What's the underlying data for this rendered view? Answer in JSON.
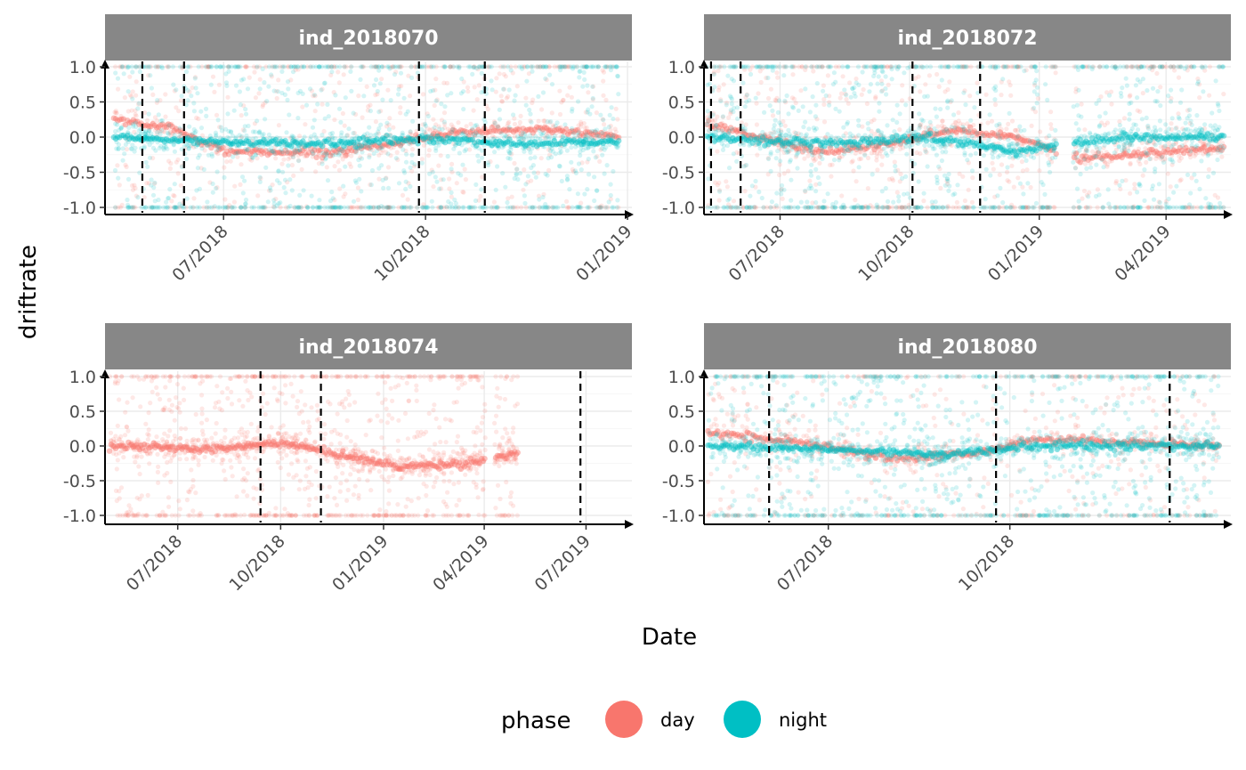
{
  "chart_data": {
    "type": "scatter",
    "xlabel": "Date",
    "ylabel": "driftrate",
    "ylim": [
      -1.0,
      1.0
    ],
    "yticks": [
      "1.0",
      "0.5",
      "0.0",
      "-0.5",
      "-1.0"
    ],
    "ytick_values": [
      1.0,
      0.5,
      0.0,
      -0.5,
      -1.0
    ],
    "grid": true,
    "legend": {
      "title": "phase",
      "placement": "bottom",
      "entries": [
        {
          "label": "day",
          "color": "#F8766D"
        },
        {
          "label": "night",
          "color": "#00BFC4"
        }
      ]
    },
    "panels": [
      {
        "id": "ind_2018070",
        "xlim": [
          "2018-05-08",
          "2019-01-03"
        ],
        "xticks": [
          {
            "date": "2018-07-01",
            "label": "07/2018"
          },
          {
            "date": "2018-10-01",
            "label": "10/2018"
          },
          {
            "date": "2019-01-01",
            "label": "01/2019"
          }
        ],
        "data_range": [
          "2018-05-12",
          "2018-12-28"
        ],
        "vlines": [
          "2018-05-25",
          "2018-06-13",
          "2018-09-28",
          "2018-10-28"
        ],
        "series": [
          {
            "name": "day",
            "trend": [
              [
                "2018-05-12",
                0.25
              ],
              [
                "2018-06-05",
                0.15
              ],
              [
                "2018-07-01",
                -0.2
              ],
              [
                "2018-08-15",
                -0.22
              ],
              [
                "2018-09-15",
                -0.1
              ],
              [
                "2018-10-15",
                0.08
              ],
              [
                "2018-12-01",
                0.1
              ],
              [
                "2018-12-28",
                0.0
              ]
            ],
            "density": 0.6
          },
          {
            "name": "night",
            "trend": [
              [
                "2018-05-12",
                0.0
              ],
              [
                "2018-06-15",
                -0.05
              ],
              [
                "2018-08-15",
                -0.1
              ],
              [
                "2018-10-01",
                -0.02
              ],
              [
                "2018-11-15",
                -0.1
              ],
              [
                "2018-12-28",
                -0.05
              ]
            ],
            "density": 1.0
          }
        ],
        "gaps": []
      },
      {
        "id": "ind_2018072",
        "xlim": [
          "2018-05-08",
          "2019-05-17"
        ],
        "xticks": [
          {
            "date": "2018-07-01",
            "label": "07/2018"
          },
          {
            "date": "2018-10-01",
            "label": "10/2018"
          },
          {
            "date": "2019-01-01",
            "label": "01/2019"
          },
          {
            "date": "2019-04-01",
            "label": "04/2019"
          }
        ],
        "data_range": [
          "2018-05-10",
          "2019-05-12"
        ],
        "vlines": [
          "2018-05-13",
          "2018-06-03",
          "2018-10-03",
          "2018-11-20"
        ],
        "series": [
          {
            "name": "day",
            "trend": [
              [
                "2018-05-10",
                0.2
              ],
              [
                "2018-06-15",
                0.0
              ],
              [
                "2018-08-01",
                -0.22
              ],
              [
                "2018-09-15",
                -0.1
              ],
              [
                "2018-11-01",
                0.1
              ],
              [
                "2018-12-15",
                0.0
              ],
              [
                "2019-02-01",
                -0.3
              ],
              [
                "2019-05-12",
                -0.15
              ]
            ],
            "density": 0.7
          },
          {
            "name": "night",
            "trend": [
              [
                "2018-05-10",
                0.0
              ],
              [
                "2018-08-01",
                -0.1
              ],
              [
                "2018-10-15",
                0.0
              ],
              [
                "2018-12-15",
                -0.2
              ],
              [
                "2019-03-01",
                0.0
              ],
              [
                "2019-05-12",
                0.0
              ]
            ],
            "density": 1.0
          }
        ],
        "gaps": [
          [
            "2019-01-13",
            "2019-01-25"
          ]
        ]
      },
      {
        "id": "ind_2018074",
        "xlim": [
          "2018-04-27",
          "2019-08-11"
        ],
        "xticks": [
          {
            "date": "2018-07-01",
            "label": "07/2018"
          },
          {
            "date": "2018-10-01",
            "label": "10/2018"
          },
          {
            "date": "2019-01-01",
            "label": "01/2019"
          },
          {
            "date": "2019-04-01",
            "label": "04/2019"
          },
          {
            "date": "2019-07-01",
            "label": "07/2019"
          }
        ],
        "data_range": [
          "2018-05-01",
          "2019-05-01"
        ],
        "vlines": [
          "2018-09-13",
          "2018-11-06",
          "2019-06-26"
        ],
        "series": [
          {
            "name": "day",
            "trend": [
              [
                "2018-05-01",
                0.0
              ],
              [
                "2018-08-01",
                -0.05
              ],
              [
                "2018-10-01",
                0.05
              ],
              [
                "2018-12-01",
                -0.15
              ],
              [
                "2019-01-15",
                -0.3
              ],
              [
                "2019-03-15",
                -0.25
              ],
              [
                "2019-05-01",
                -0.1
              ]
            ],
            "density": 1.0
          }
        ],
        "gaps": [
          [
            "2019-04-02",
            "2019-04-10"
          ]
        ]
      },
      {
        "id": "ind_2018080",
        "xlim": [
          "2018-04-29",
          "2019-01-21"
        ],
        "xticks": [
          {
            "date": "2018-07-01",
            "label": "07/2018"
          },
          {
            "date": "2018-10-01",
            "label": "10/2018"
          }
        ],
        "data_range": [
          "2018-05-01",
          "2019-01-15"
        ],
        "vlines": [
          "2018-06-01",
          "2018-09-24",
          "2018-12-21"
        ],
        "series": [
          {
            "name": "day",
            "trend": [
              [
                "2018-05-01",
                0.2
              ],
              [
                "2018-06-15",
                0.05
              ],
              [
                "2018-08-01",
                -0.18
              ],
              [
                "2018-09-15",
                -0.1
              ],
              [
                "2018-10-15",
                0.1
              ],
              [
                "2018-12-01",
                0.05
              ],
              [
                "2019-01-15",
                0.0
              ]
            ],
            "density": 0.5
          },
          {
            "name": "night",
            "trend": [
              [
                "2018-05-01",
                0.0
              ],
              [
                "2018-07-01",
                -0.05
              ],
              [
                "2018-09-01",
                -0.12
              ],
              [
                "2018-10-15",
                0.0
              ],
              [
                "2019-01-15",
                0.0
              ]
            ],
            "density": 1.0
          }
        ],
        "gaps": []
      }
    ]
  }
}
